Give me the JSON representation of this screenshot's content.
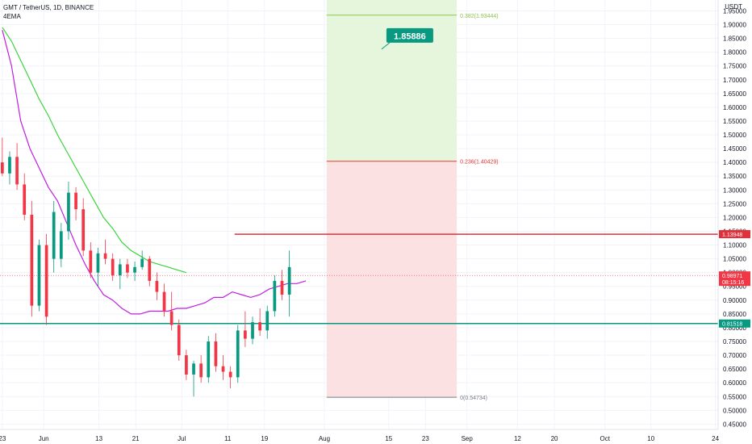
{
  "header": {
    "title": "GMT / TetherUS, 1D, BINANCE",
    "indicator": "4EMA"
  },
  "price_axis_unit": "USDT",
  "target_label": "1.85886",
  "fib_levels": [
    {
      "label": "0.382(1.93444)",
      "price": 1.93444,
      "color": "#8bc34a"
    },
    {
      "label": "0.236(1.40429)",
      "price": 1.40429,
      "color": "#e53935"
    },
    {
      "label": "0(0.54734)",
      "price": 0.54734,
      "color": "#787b86"
    }
  ],
  "badges": [
    {
      "label": "1.13948",
      "price": 1.13948,
      "color": "#e0313b"
    },
    {
      "label": "0.98971",
      "sublabel": "08:15:16",
      "price": 0.98971,
      "color": "#f23645"
    },
    {
      "label": "0.81518",
      "price": 0.81518,
      "color": "#089981"
    }
  ],
  "colors": {
    "up": "#089981",
    "down": "#f23645",
    "ema_fast": "#c01ee0",
    "ema_slow": "#3ad43a",
    "resistance": "#e0313b",
    "support": "#089981",
    "zone_upper": "#e6f6dd",
    "zone_lower": "#fbe1e1"
  },
  "chart_data": {
    "type": "candlestick",
    "title": "GMT / TetherUS, 1D, BINANCE",
    "y_axis_ticks": [
      "1.95000",
      "1.90000",
      "1.85000",
      "1.80000",
      "1.75000",
      "1.70000",
      "1.65000",
      "1.60000",
      "1.55000",
      "1.50000",
      "1.45000",
      "1.40000",
      "1.35000",
      "1.30000",
      "1.25000",
      "1.20000",
      "1.15000",
      "1.10000",
      "1.05000",
      "1.00000",
      "0.95000",
      "0.90000",
      "0.85000",
      "0.80000",
      "0.75000",
      "0.70000",
      "0.65000",
      "0.60000",
      "0.55000",
      "0.50000",
      "0.45000"
    ],
    "x_axis_ticks": [
      {
        "label": "23",
        "day": 0
      },
      {
        "label": "Jun",
        "day": 9
      },
      {
        "label": "13",
        "day": 21
      },
      {
        "label": "21",
        "day": 29
      },
      {
        "label": "Jul",
        "day": 39
      },
      {
        "label": "11",
        "day": 49
      },
      {
        "label": "19",
        "day": 57
      },
      {
        "label": "Aug",
        "day": 70
      },
      {
        "label": "15",
        "day": 84
      },
      {
        "label": "23",
        "day": 92
      },
      {
        "label": "Sep",
        "day": 101
      },
      {
        "label": "12",
        "day": 112
      },
      {
        "label": "20",
        "day": 120
      },
      {
        "label": "Oct",
        "day": 131
      },
      {
        "label": "10",
        "day": 141
      },
      {
        "label": "24",
        "day": 155
      }
    ],
    "ylim": [
      0.4306,
      1.9894
    ],
    "xlim": [
      -0.5,
      155.6
    ],
    "candles": [
      [
        1.4,
        1.49,
        1.35,
        1.36
      ],
      [
        1.36,
        1.44,
        1.32,
        1.42
      ],
      [
        1.42,
        1.47,
        1.3,
        1.32
      ],
      [
        1.32,
        1.36,
        1.19,
        1.21
      ],
      [
        1.21,
        1.26,
        0.84,
        0.88
      ],
      [
        0.88,
        1.12,
        0.86,
        1.1
      ],
      [
        1.1,
        1.14,
        0.81,
        0.84
      ],
      [
        1.05,
        1.26,
        1.0,
        1.22
      ],
      [
        1.05,
        1.18,
        1.02,
        1.15
      ],
      [
        1.15,
        1.33,
        1.12,
        1.29
      ],
      [
        1.29,
        1.31,
        1.19,
        1.23
      ],
      [
        1.23,
        1.27,
        1.06,
        1.08
      ],
      [
        1.08,
        1.11,
        0.98,
        1.0
      ],
      [
        1.0,
        1.09,
        0.95,
        1.07
      ],
      [
        1.07,
        1.12,
        1.03,
        1.05
      ],
      [
        1.05,
        1.07,
        0.97,
        0.99
      ],
      [
        0.99,
        1.05,
        0.94,
        1.03
      ],
      [
        1.03,
        1.05,
        0.98,
        1.0
      ],
      [
        1.0,
        1.04,
        0.97,
        1.02
      ],
      [
        1.02,
        1.08,
        1.01,
        1.05
      ],
      [
        1.05,
        1.06,
        0.95,
        0.97
      ],
      [
        0.97,
        1.0,
        0.9,
        0.93
      ],
      [
        0.93,
        0.96,
        0.84,
        0.86
      ],
      [
        0.86,
        0.93,
        0.79,
        0.81
      ],
      [
        0.81,
        0.83,
        0.68,
        0.7
      ],
      [
        0.7,
        0.72,
        0.61,
        0.63
      ],
      [
        0.63,
        0.68,
        0.55,
        0.67
      ],
      [
        0.67,
        0.7,
        0.6,
        0.62
      ],
      [
        0.62,
        0.77,
        0.6,
        0.75
      ],
      [
        0.75,
        0.78,
        0.64,
        0.66
      ],
      [
        0.66,
        0.7,
        0.61,
        0.64
      ],
      [
        0.64,
        0.66,
        0.58,
        0.62
      ],
      [
        0.62,
        0.81,
        0.6,
        0.79
      ],
      [
        0.79,
        0.86,
        0.73,
        0.76
      ],
      [
        0.76,
        0.84,
        0.74,
        0.82
      ],
      [
        0.82,
        0.87,
        0.77,
        0.79
      ],
      [
        0.79,
        0.88,
        0.76,
        0.86
      ],
      [
        0.86,
        0.99,
        0.84,
        0.97
      ],
      [
        0.97,
        1.01,
        0.9,
        0.92
      ],
      [
        0.92,
        1.08,
        0.84,
        1.02
      ]
    ],
    "day_offset_of_candle_20": 20,
    "ema_fast": [
      1.88,
      1.75,
      1.55,
      1.45,
      1.38,
      1.31,
      1.26,
      1.18,
      1.1,
      1.03,
      0.97,
      0.92,
      0.9,
      0.87,
      0.85,
      0.85,
      0.86,
      0.86,
      0.86,
      0.87,
      0.87,
      0.88,
      0.89,
      0.91,
      0.91,
      0.93,
      0.92,
      0.91,
      0.92,
      0.94,
      0.95,
      0.96,
      0.96,
      0.97
    ],
    "ema_slow": [
      1.89,
      1.84,
      1.77,
      1.7,
      1.63,
      1.57,
      1.5,
      1.44,
      1.38,
      1.32,
      1.26,
      1.2,
      1.16,
      1.11,
      1.08,
      1.06,
      1.04,
      1.03,
      1.02,
      1.01,
      1.0
    ],
    "resistance_price": 1.13948,
    "support_price": 0.81518
  }
}
